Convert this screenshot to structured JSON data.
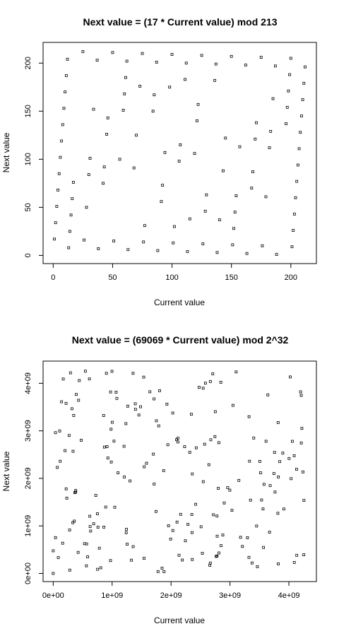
{
  "chart_data": [
    {
      "type": "scatter",
      "title": "Next value = (17 * Current value) mod 213",
      "xlabel": "Current value",
      "ylabel": "Next value",
      "xlim": [
        0,
        213
      ],
      "ylim": [
        0,
        213
      ],
      "xticks": [
        0,
        50,
        100,
        150,
        200
      ],
      "xtick_labels": [
        "0",
        "50",
        "100",
        "150",
        "200"
      ],
      "yticks": [
        0,
        50,
        100,
        150,
        200
      ],
      "ytick_labels": [
        "0",
        "50",
        "100",
        "150",
        "200"
      ],
      "marker": "open-square",
      "grid": false,
      "points": [
        [
          1,
          17
        ],
        [
          17,
          76
        ],
        [
          76,
          14
        ],
        [
          14,
          25
        ],
        [
          25,
          212
        ],
        [
          212,
          196
        ],
        [
          196,
          137
        ],
        [
          137,
          199
        ],
        [
          199,
          188
        ],
        [
          188,
          1
        ],
        [
          2,
          34
        ],
        [
          34,
          152
        ],
        [
          152,
          28
        ],
        [
          28,
          50
        ],
        [
          50,
          211
        ],
        [
          211,
          179
        ],
        [
          179,
          61
        ],
        [
          61,
          185
        ],
        [
          185,
          163
        ],
        [
          163,
          2
        ],
        [
          3,
          51
        ],
        [
          51,
          15
        ],
        [
          15,
          42
        ],
        [
          42,
          75
        ],
        [
          75,
          210
        ],
        [
          210,
          162
        ],
        [
          162,
          198
        ],
        [
          198,
          171
        ],
        [
          171,
          138
        ],
        [
          138,
          3
        ],
        [
          4,
          68
        ],
        [
          68,
          91
        ],
        [
          91,
          56
        ],
        [
          56,
          100
        ],
        [
          100,
          209
        ],
        [
          209,
          145
        ],
        [
          145,
          122
        ],
        [
          122,
          157
        ],
        [
          157,
          113
        ],
        [
          113,
          4
        ],
        [
          5,
          85
        ],
        [
          85,
          167
        ],
        [
          167,
          70
        ],
        [
          70,
          125
        ],
        [
          125,
          208
        ],
        [
          208,
          128
        ],
        [
          128,
          46
        ],
        [
          46,
          143
        ],
        [
          143,
          88
        ],
        [
          88,
          5
        ],
        [
          6,
          102
        ],
        [
          102,
          30
        ],
        [
          30,
          84
        ],
        [
          84,
          150
        ],
        [
          150,
          207
        ],
        [
          207,
          111
        ],
        [
          111,
          183
        ],
        [
          183,
          129
        ],
        [
          129,
          63
        ],
        [
          63,
          6
        ],
        [
          7,
          119
        ],
        [
          119,
          106
        ],
        [
          106,
          98
        ],
        [
          98,
          175
        ],
        [
          175,
          206
        ],
        [
          206,
          94
        ],
        [
          94,
          107
        ],
        [
          107,
          115
        ],
        [
          115,
          38
        ],
        [
          38,
          7
        ],
        [
          8,
          136
        ],
        [
          136,
          182
        ],
        [
          182,
          112
        ],
        [
          112,
          200
        ],
        [
          200,
          205
        ],
        [
          205,
          77
        ],
        [
          77,
          31
        ],
        [
          31,
          101
        ],
        [
          101,
          13
        ],
        [
          13,
          8
        ],
        [
          9,
          153
        ],
        [
          153,
          45
        ],
        [
          45,
          126
        ],
        [
          126,
          12
        ],
        [
          12,
          204
        ],
        [
          204,
          60
        ],
        [
          60,
          168
        ],
        [
          168,
          87
        ],
        [
          87,
          201
        ],
        [
          201,
          9
        ],
        [
          10,
          170
        ],
        [
          170,
          121
        ],
        [
          121,
          140
        ],
        [
          140,
          37
        ],
        [
          37,
          203
        ],
        [
          203,
          43
        ],
        [
          43,
          92
        ],
        [
          92,
          73
        ],
        [
          73,
          176
        ],
        [
          176,
          10
        ],
        [
          11,
          187
        ],
        [
          187,
          197
        ],
        [
          197,
          154
        ],
        [
          154,
          62
        ],
        [
          62,
          202
        ],
        [
          202,
          26
        ],
        [
          26,
          16
        ],
        [
          16,
          59
        ],
        [
          59,
          151
        ],
        [
          151,
          11
        ]
      ]
    },
    {
      "type": "scatter",
      "title": "Next value = (69069 * Current value) mod 2^32",
      "xlabel": "Current value",
      "ylabel": "Next value",
      "xlim": [
        0,
        4294967296
      ],
      "ylim": [
        0,
        4294967296
      ],
      "xticks": [
        0,
        1000000000,
        2000000000,
        3000000000,
        4000000000
      ],
      "xtick_labels": [
        "0e+00",
        "1e+09",
        "2e+09",
        "3e+09",
        "4e+09"
      ],
      "yticks": [
        0,
        1000000000,
        2000000000,
        3000000000,
        4000000000
      ],
      "ytick_labels": [
        "0e+00",
        "1e+09",
        "2e+09",
        "3e+09",
        "4e+09"
      ],
      "marker": "open-square",
      "grid": false,
      "generator": {
        "multiplier": 69069,
        "modulus": 4294967296,
        "seed": 1,
        "count": 200
      }
    }
  ]
}
